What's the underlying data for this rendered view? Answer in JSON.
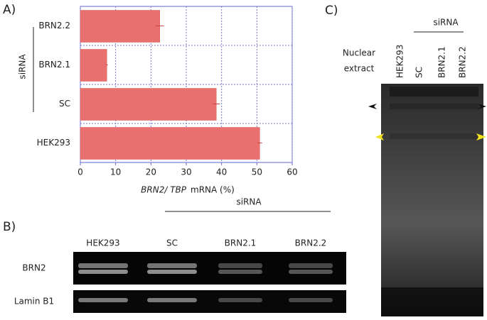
{
  "chart_data": {
    "type": "bar",
    "orientation": "horizontal",
    "panel_label": "A)",
    "categories": [
      "BRN2.2",
      "BRN2.1",
      "SC",
      "HEK293"
    ],
    "values": [
      22.5,
      7.5,
      38.5,
      50.8
    ],
    "errors": [
      1.2,
      0.3,
      1.0,
      0.7
    ],
    "color": "#e8706f",
    "xlim": [
      0,
      60
    ],
    "xticks": [
      0,
      10,
      20,
      30,
      40,
      50,
      60
    ],
    "grid": true,
    "x_label_italic": "BRN2/ TBP",
    "x_label": "mRNA (%)",
    "group_label": "siRNA"
  },
  "panel_b": {
    "label": "B)",
    "group_label": "siRNA",
    "columns": [
      "HEK293",
      "SC",
      "BRN2.1",
      "BRN2.2"
    ],
    "rows": [
      "BRN2",
      "Lamin B1"
    ]
  },
  "panel_c": {
    "label": "C)",
    "group_label": "siRNA",
    "row_label": [
      "Nuclear",
      "extract"
    ],
    "columns": [
      "HEK293",
      "SC",
      "BRN2.1",
      "BRN2.2"
    ]
  }
}
